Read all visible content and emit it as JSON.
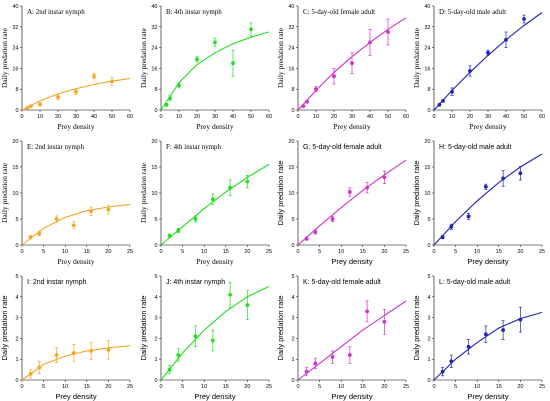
{
  "chart_data": [
    {
      "id": "A",
      "type": "scatter",
      "title": "A: 2nd instar nymph",
      "xlabel": "Prey density",
      "ylabel": "Daily predation rate",
      "xlim": [
        0,
        60
      ],
      "ylim": [
        0,
        40
      ],
      "xticks": [
        0,
        10,
        20,
        30,
        40,
        50,
        60
      ],
      "yticks": [
        0,
        8,
        16,
        24,
        32,
        40
      ],
      "color": "#f5a623",
      "x": [
        3,
        5,
        10,
        20,
        30,
        40,
        50
      ],
      "y": [
        0.8,
        1.5,
        2.2,
        5,
        7,
        13,
        11
      ],
      "err": [
        0.3,
        0.5,
        0.7,
        1,
        1,
        1,
        1.5
      ],
      "fit": [
        [
          0,
          0
        ],
        [
          10,
          3.5
        ],
        [
          20,
          6.2
        ],
        [
          30,
          8.2
        ],
        [
          40,
          9.8
        ],
        [
          50,
          11.1
        ],
        [
          60,
          12.1
        ]
      ]
    },
    {
      "id": "B",
      "type": "scatter",
      "title": "B: 4th instar nymph",
      "xlabel": "Prey density",
      "ylabel": "Daily predation rate",
      "xlim": [
        0,
        60
      ],
      "ylim": [
        0,
        40
      ],
      "xticks": [
        0,
        10,
        20,
        30,
        40,
        50,
        60
      ],
      "yticks": [
        0,
        8,
        16,
        24,
        32,
        40
      ],
      "color": "#22dd22",
      "x": [
        3,
        5,
        10,
        20,
        30,
        40,
        50
      ],
      "y": [
        2,
        4.5,
        9.5,
        19.5,
        26,
        18,
        31
      ],
      "err": [
        0.5,
        1,
        1,
        1,
        1.5,
        5,
        2.5
      ],
      "fit": [
        [
          0,
          0
        ],
        [
          10,
          10.5
        ],
        [
          20,
          17.5
        ],
        [
          30,
          22
        ],
        [
          40,
          25.5
        ],
        [
          50,
          28
        ],
        [
          60,
          30
        ]
      ]
    },
    {
      "id": "C",
      "type": "scatter",
      "title": "C: 5-day-old female adult",
      "xlabel": "Prey density",
      "ylabel": "Daily predation rate",
      "xlim": [
        0,
        60
      ],
      "ylim": [
        0,
        40
      ],
      "xticks": [
        0,
        10,
        20,
        30,
        40,
        50,
        60
      ],
      "yticks": [
        0,
        8,
        16,
        24,
        32,
        40
      ],
      "color": "#cc33cc",
      "x": [
        3,
        5,
        10,
        20,
        30,
        40,
        50
      ],
      "y": [
        1.5,
        3.2,
        8,
        13,
        18,
        26,
        30
      ],
      "err": [
        0.4,
        0.5,
        1,
        3,
        4,
        5,
        5
      ],
      "fit": [
        [
          0,
          0
        ],
        [
          10,
          7.5
        ],
        [
          20,
          14.5
        ],
        [
          30,
          20.5
        ],
        [
          40,
          26
        ],
        [
          50,
          31
        ],
        [
          60,
          35.5
        ]
      ]
    },
    {
      "id": "D",
      "type": "scatter",
      "title": "D: 5-day-old male adult",
      "xlabel": "Prey density",
      "ylabel": "Daily predation rate",
      "xlim": [
        0,
        60
      ],
      "ylim": [
        0,
        40
      ],
      "xticks": [
        0,
        10,
        20,
        30,
        40,
        50,
        60
      ],
      "yticks": [
        0,
        8,
        16,
        24,
        32,
        40
      ],
      "color": "#2222bb",
      "x": [
        3,
        5,
        10,
        20,
        30,
        40,
        50
      ],
      "y": [
        2,
        3.5,
        7,
        15,
        22,
        27,
        35
      ],
      "err": [
        0.4,
        0.5,
        1.5,
        2,
        1,
        3,
        1.5
      ],
      "fit": [
        [
          0,
          0
        ],
        [
          10,
          7.5
        ],
        [
          20,
          14.5
        ],
        [
          30,
          21
        ],
        [
          40,
          27
        ],
        [
          50,
          32.5
        ],
        [
          60,
          37.5
        ]
      ]
    },
    {
      "id": "E",
      "type": "scatter",
      "title": "E: 2nd instar nymph",
      "xlabel": "Prey density",
      "ylabel": "Daily predation rate",
      "xlim": [
        0,
        25
      ],
      "ylim": [
        0,
        20
      ],
      "xticks": [
        0,
        5,
        10,
        15,
        20,
        25
      ],
      "yticks": [
        0,
        5,
        10,
        15,
        20
      ],
      "color": "#f5a623",
      "x": [
        2,
        4,
        8,
        12,
        16,
        20
      ],
      "y": [
        1.5,
        2.2,
        5,
        3.8,
        6.5,
        6.8
      ],
      "err": [
        0.3,
        0.4,
        0.6,
        0.7,
        0.8,
        0.8
      ],
      "fit": [
        [
          0,
          0
        ],
        [
          5,
          3.2
        ],
        [
          10,
          5.3
        ],
        [
          15,
          6.6
        ],
        [
          20,
          7.3
        ],
        [
          25,
          7.8
        ]
      ]
    },
    {
      "id": "F",
      "type": "scatter",
      "title": "F: 4th instar nymph",
      "xlabel": "Prey density",
      "ylabel": "Daily predation rate",
      "xlim": [
        0,
        25
      ],
      "ylim": [
        0,
        20
      ],
      "xticks": [
        0,
        5,
        10,
        15,
        20,
        25
      ],
      "yticks": [
        0,
        5,
        10,
        15,
        20
      ],
      "color": "#22dd22",
      "x": [
        2,
        4,
        8,
        12,
        16,
        20
      ],
      "y": [
        1.8,
        2.8,
        5,
        8.8,
        11,
        12.2
      ],
      "err": [
        0.3,
        0.4,
        0.6,
        1,
        1.5,
        1.2
      ],
      "fit": [
        [
          0,
          0
        ],
        [
          5,
          3.5
        ],
        [
          10,
          7
        ],
        [
          15,
          10.2
        ],
        [
          20,
          13
        ],
        [
          25,
          15.5
        ]
      ]
    },
    {
      "id": "G",
      "type": "scatter",
      "title": "G: 5-day-old female adult",
      "xlabel": "Prey density",
      "ylabel": "Daily predation rate",
      "xlim": [
        0,
        25
      ],
      "ylim": [
        0,
        20
      ],
      "xticks": [
        0,
        5,
        10,
        15,
        20,
        25
      ],
      "yticks": [
        0,
        5,
        10,
        15,
        20
      ],
      "color": "#cc33cc",
      "x": [
        2,
        4,
        8,
        12,
        16,
        20
      ],
      "y": [
        1.2,
        2.5,
        5,
        10.2,
        11,
        13
      ],
      "err": [
        0.3,
        0.4,
        0.5,
        0.8,
        1,
        1.2
      ],
      "fit": [
        [
          0,
          0
        ],
        [
          5,
          3.7
        ],
        [
          10,
          7.2
        ],
        [
          15,
          10.5
        ],
        [
          20,
          13.5
        ],
        [
          25,
          16.3
        ]
      ]
    },
    {
      "id": "H",
      "type": "scatter",
      "title": "H: 5-day-old male adult",
      "xlabel": "Prey density",
      "ylabel": "Daily predation rate",
      "xlim": [
        0,
        25
      ],
      "ylim": [
        0,
        20
      ],
      "xticks": [
        0,
        5,
        10,
        15,
        20,
        25
      ],
      "yticks": [
        0,
        5,
        10,
        15,
        20
      ],
      "color": "#2222bb",
      "x": [
        2,
        4,
        8,
        12,
        16,
        20
      ],
      "y": [
        1.5,
        3.5,
        5.5,
        11.2,
        12.8,
        13.8
      ],
      "err": [
        0.3,
        0.5,
        0.6,
        0.5,
        1.5,
        1.3
      ],
      "fit": [
        [
          0,
          0
        ],
        [
          5,
          4.5
        ],
        [
          10,
          8.5
        ],
        [
          15,
          12
        ],
        [
          20,
          15
        ],
        [
          25,
          17.5
        ]
      ]
    },
    {
      "id": "I",
      "type": "scatter",
      "title": "I: 2nd instar nymph",
      "xlabel": "Prey density",
      "ylabel": "Daily predation rate",
      "xlim": [
        0,
        25
      ],
      "ylim": [
        0,
        5
      ],
      "xticks": [
        0,
        5,
        10,
        15,
        20,
        25
      ],
      "yticks": [
        0,
        1,
        2,
        3,
        4,
        5
      ],
      "color": "#f5a623",
      "x": [
        2,
        4,
        8,
        12,
        16,
        20
      ],
      "y": [
        0.3,
        0.6,
        1.2,
        1.3,
        1.4,
        1.45
      ],
      "err": [
        0.2,
        0.3,
        0.35,
        0.4,
        0.4,
        0.45
      ],
      "fit": [
        [
          0,
          0
        ],
        [
          5,
          0.75
        ],
        [
          10,
          1.15
        ],
        [
          15,
          1.4
        ],
        [
          20,
          1.55
        ],
        [
          25,
          1.65
        ]
      ]
    },
    {
      "id": "J",
      "type": "scatter",
      "title": "J: 4th instar nymph",
      "xlabel": "Prey density",
      "ylabel": "Daily predation rate",
      "xlim": [
        0,
        25
      ],
      "ylim": [
        0,
        5
      ],
      "xticks": [
        0,
        5,
        10,
        15,
        20,
        25
      ],
      "yticks": [
        0,
        1,
        2,
        3,
        4,
        5
      ],
      "color": "#22dd22",
      "x": [
        2,
        4,
        8,
        12,
        16,
        20
      ],
      "y": [
        0.5,
        1.2,
        2.1,
        1.9,
        4.1,
        3.6
      ],
      "err": [
        0.2,
        0.3,
        0.5,
        0.5,
        0.6,
        0.7
      ],
      "fit": [
        [
          0,
          0
        ],
        [
          5,
          1.3
        ],
        [
          10,
          2.4
        ],
        [
          15,
          3.3
        ],
        [
          20,
          4
        ],
        [
          25,
          4.5
        ]
      ]
    },
    {
      "id": "K",
      "type": "scatter",
      "title": "K: 5-day-old female adult",
      "xlabel": "Prey density",
      "ylabel": "Daily predation rate",
      "xlim": [
        0,
        25
      ],
      "ylim": [
        0,
        5
      ],
      "xticks": [
        0,
        5,
        10,
        15,
        20,
        25
      ],
      "yticks": [
        0,
        1,
        2,
        3,
        4,
        5
      ],
      "color": "#cc33cc",
      "x": [
        2,
        4,
        8,
        12,
        16,
        20
      ],
      "y": [
        0.4,
        0.8,
        1.1,
        1.2,
        3.3,
        2.8
      ],
      "err": [
        0.2,
        0.25,
        0.3,
        0.4,
        0.5,
        0.6
      ],
      "fit": [
        [
          0,
          0
        ],
        [
          5,
          0.8
        ],
        [
          10,
          1.6
        ],
        [
          15,
          2.4
        ],
        [
          20,
          3.1
        ],
        [
          25,
          3.8
        ]
      ]
    },
    {
      "id": "L",
      "type": "scatter",
      "title": "L: 5-day-old male adult",
      "xlabel": "Prey density",
      "ylabel": "Daily predation rate",
      "xlim": [
        0,
        25
      ],
      "ylim": [
        0,
        5
      ],
      "xticks": [
        0,
        5,
        10,
        15,
        20,
        25
      ],
      "yticks": [
        0,
        1,
        2,
        3,
        4,
        5
      ],
      "color": "#2222bb",
      "x": [
        2,
        4,
        8,
        12,
        16,
        20
      ],
      "y": [
        0.4,
        0.9,
        1.6,
        2.2,
        2.4,
        2.9
      ],
      "err": [
        0.2,
        0.3,
        0.35,
        0.4,
        0.45,
        0.6
      ],
      "fit": [
        [
          0,
          0
        ],
        [
          5,
          1
        ],
        [
          10,
          1.8
        ],
        [
          15,
          2.5
        ],
        [
          20,
          2.95
        ],
        [
          25,
          3.25
        ]
      ]
    }
  ]
}
